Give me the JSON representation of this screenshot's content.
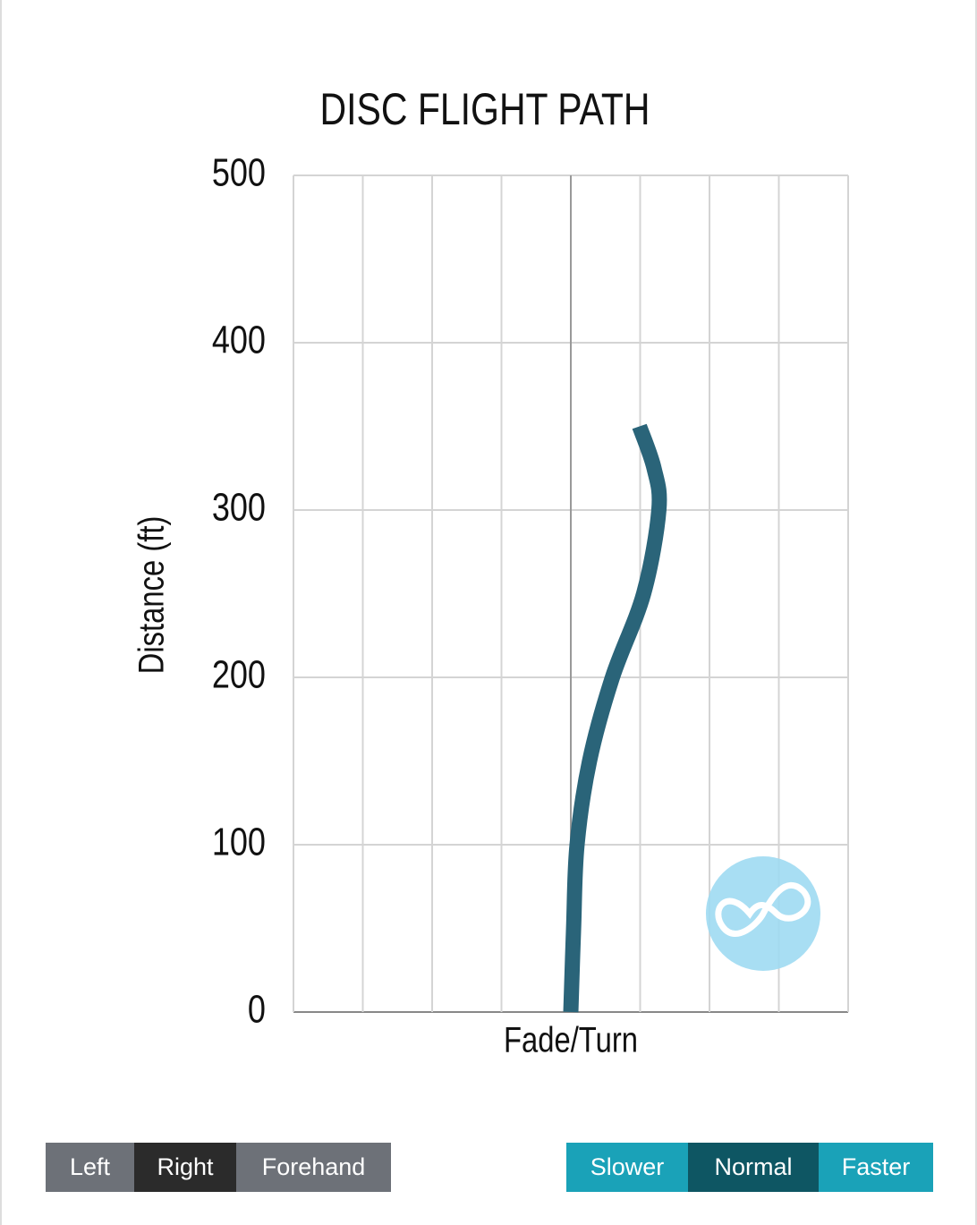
{
  "chart_data": {
    "type": "line",
    "title": "DISC FLIGHT PATH",
    "x_label": "Fade/Turn",
    "y_label": "Distance (ft)",
    "series": [
      {
        "color": "#2a6479",
        "x": [
          0,
          0.04,
          0.09,
          0.27,
          0.6,
          1.05,
          1.27,
          1.2,
          0.99
        ],
        "values": [
          0,
          50,
          100,
          150,
          200,
          250,
          300,
          325,
          350
        ]
      }
    ],
    "xlim": [
      -4,
      4
    ],
    "xticks": [
      -4,
      -3,
      -2,
      -1,
      0,
      1,
      2,
      3,
      4
    ],
    "ylim": [
      0,
      500
    ],
    "yticks": [
      0,
      100,
      200,
      300,
      400,
      500
    ],
    "grid": true
  },
  "controls": {
    "throw": {
      "options": [
        "Left",
        "Right",
        "Forehand"
      ],
      "selected": 1
    },
    "speed": {
      "options": [
        "Slower",
        "Normal",
        "Faster"
      ],
      "selected": 1
    }
  }
}
